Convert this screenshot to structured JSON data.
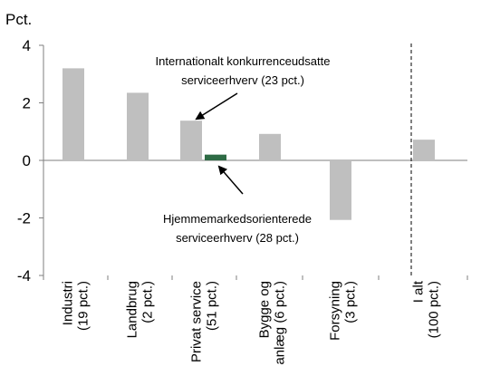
{
  "chart_data": {
    "type": "bar",
    "y_unit": "Pct.",
    "ylim": [
      -4,
      4
    ],
    "yticks": [
      "4",
      "2",
      "0",
      "-2",
      "-4"
    ],
    "grid": false,
    "categories": [
      [
        "Industri",
        "(19 pct.)"
      ],
      [
        "Landbrug",
        "(2 pct.)"
      ],
      [
        "Privat service",
        "(51 pct.)"
      ],
      [
        "Bygge og",
        "anlæg (6 pct.)"
      ],
      [
        "Forsyning",
        "(3 pct.)"
      ],
      [
        "I alt",
        "(100 pct.)"
      ]
    ],
    "bars": [
      {
        "category": 0,
        "value": 3.2,
        "color": "#bfbfbf"
      },
      {
        "category": 1,
        "value": 2.35,
        "color": "#bfbfbf"
      },
      {
        "category": 2,
        "value": 1.38,
        "color": "#bfbfbf",
        "annotation": 0
      },
      {
        "category": 2,
        "value": 0.2,
        "color": "#2e6b45",
        "annotation": 1
      },
      {
        "category": 3,
        "value": 0.92,
        "color": "#bfbfbf"
      },
      {
        "category": 4,
        "value": -2.07,
        "color": "#bfbfbf"
      },
      {
        "category": 5,
        "value": 0.72,
        "color": "#bfbfbf"
      }
    ],
    "annotations": [
      {
        "lines": [
          "Internationalt konkurrenceudsatte",
          "serviceerhverv (23 pct.)"
        ]
      },
      {
        "lines": [
          "Hjemmemarkedsorienterede",
          "serviceerhverv (28 pct.)"
        ]
      }
    ],
    "separator": "dashed line between Forsyning and I alt"
  }
}
